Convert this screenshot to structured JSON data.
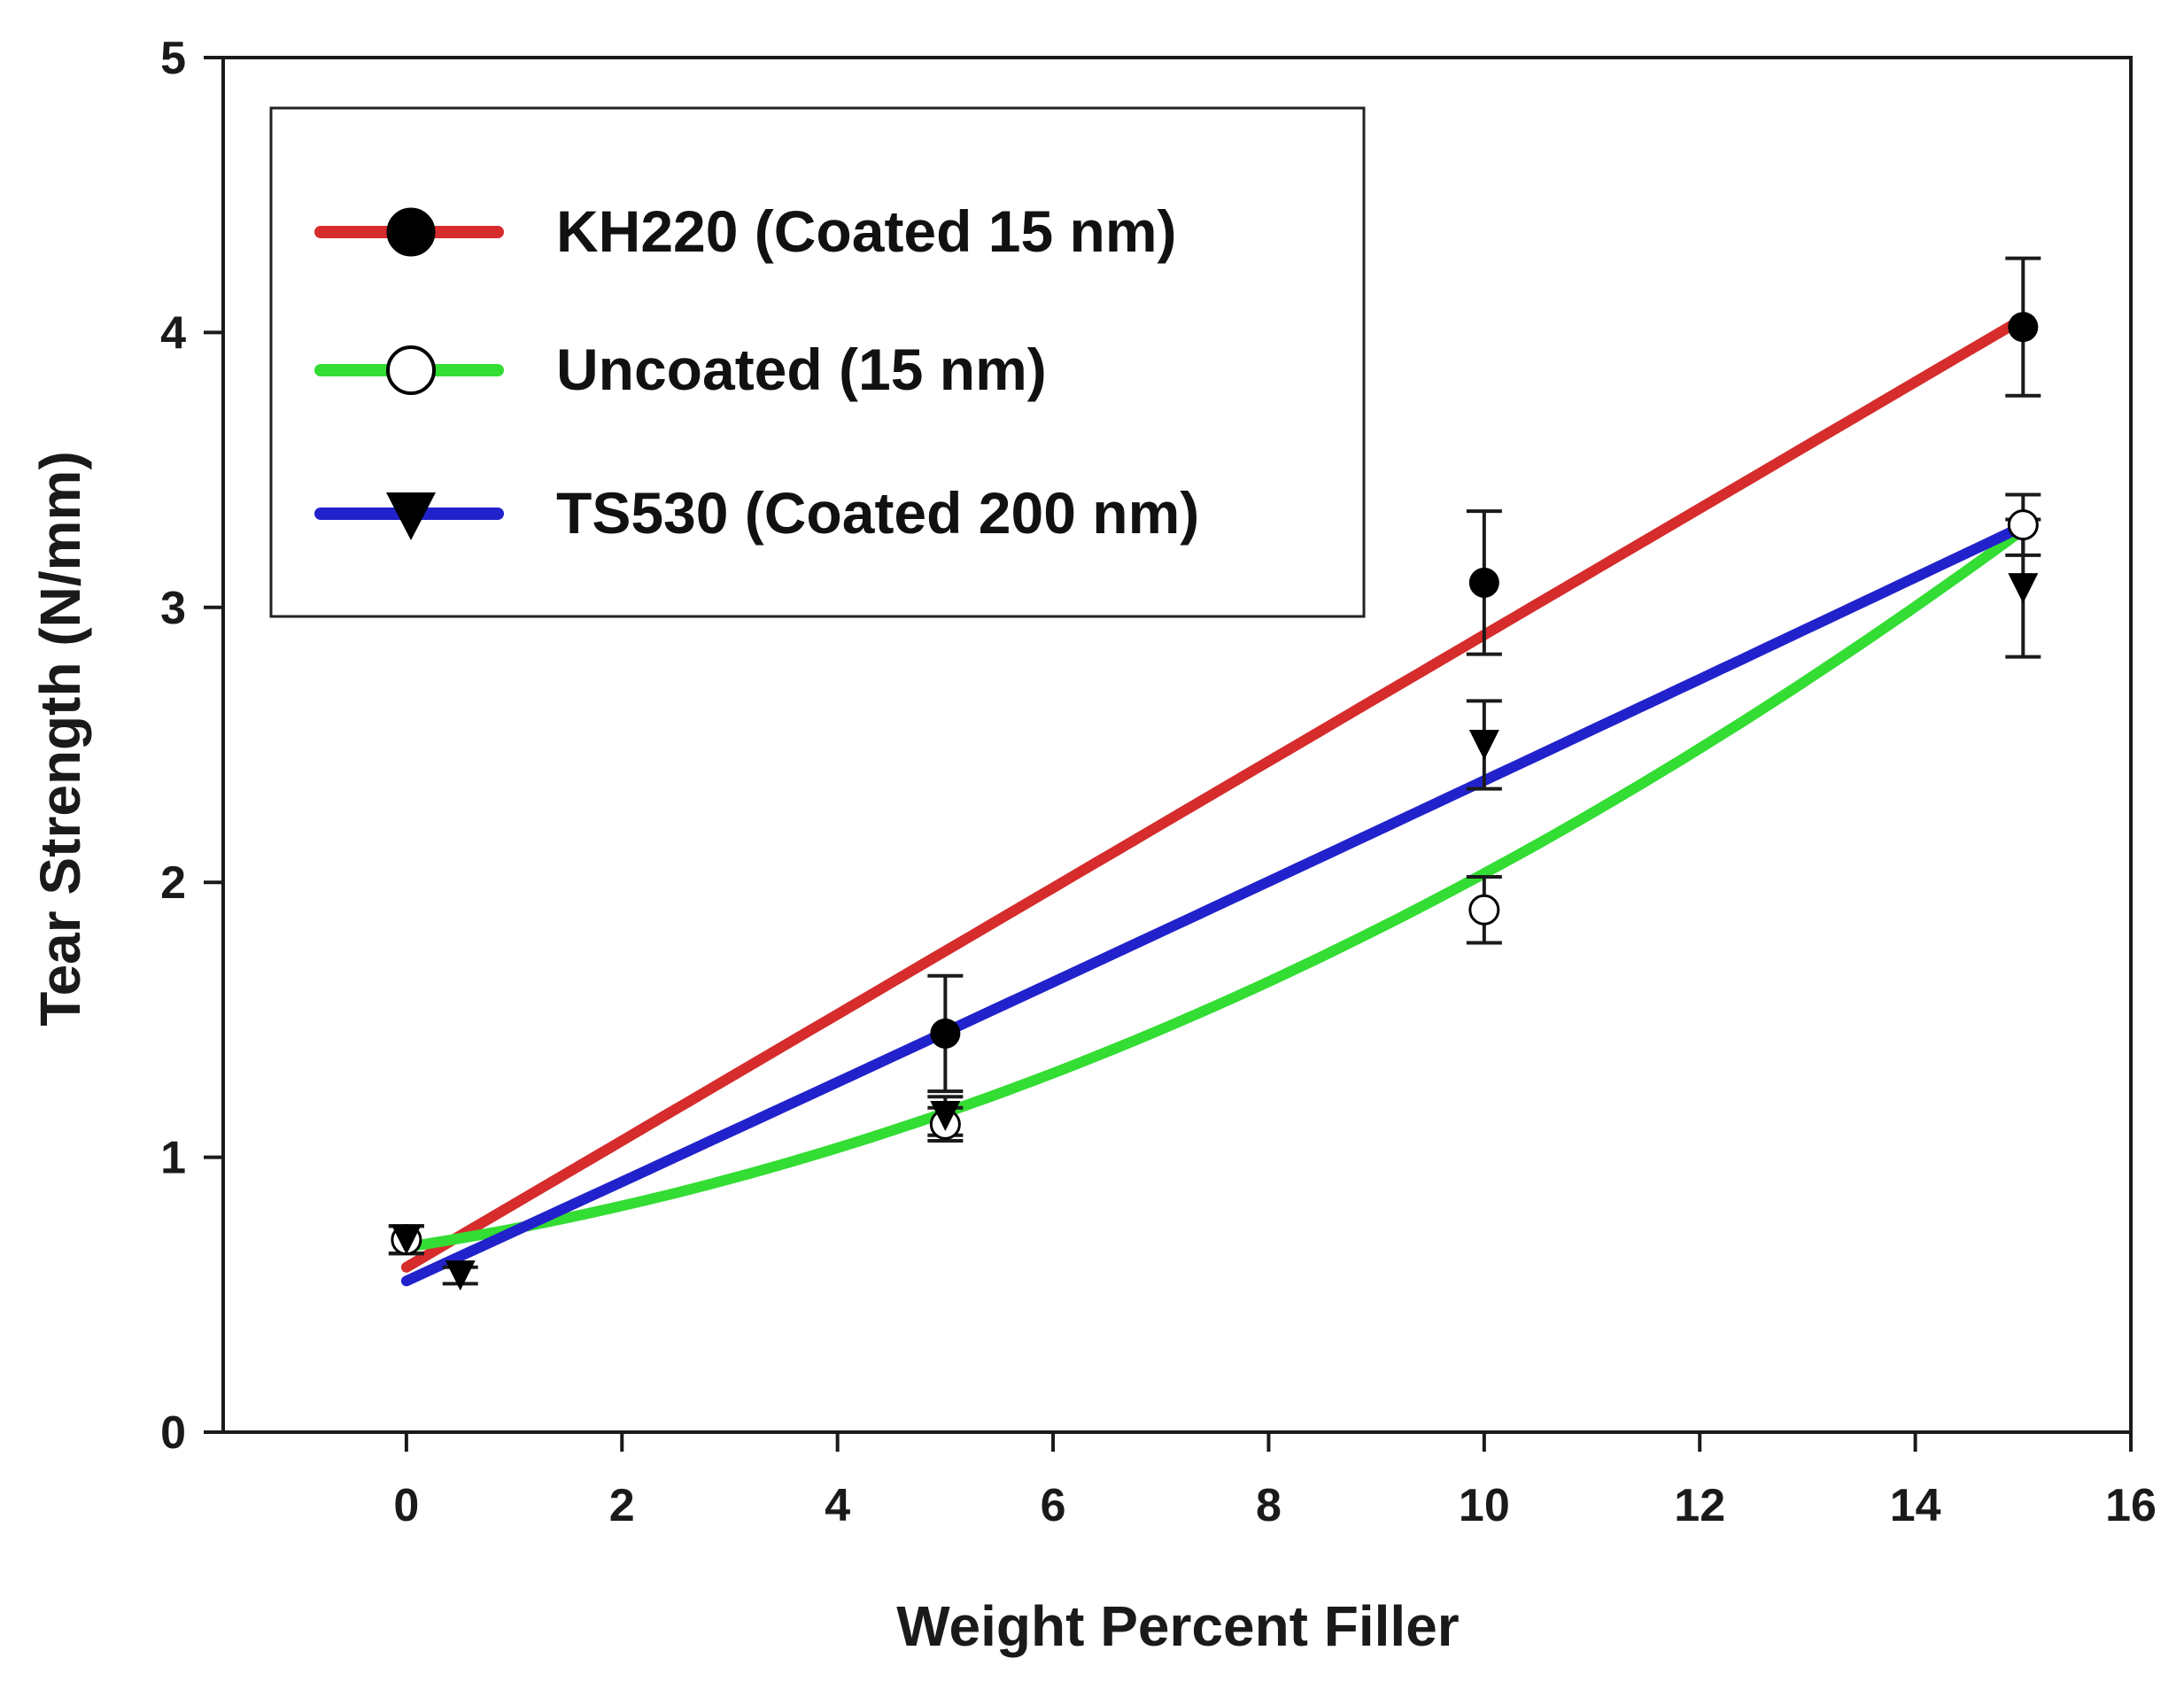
{
  "chart_data": {
    "type": "line",
    "title": "",
    "xlabel": "Weight Percent Filler",
    "ylabel": "Tear Strength (N/mm)",
    "xlim": [
      -1.7,
      16
    ],
    "ylim": [
      0,
      5
    ],
    "xticks": [
      0,
      2,
      4,
      6,
      8,
      10,
      12,
      14,
      16
    ],
    "yticks": [
      0,
      1,
      2,
      3,
      4,
      5
    ],
    "grid": false,
    "legend_position": "top-left",
    "series": [
      {
        "name": "KH220 (Coated 15 nm)",
        "color": "#d62c2c",
        "marker": "filled-circle",
        "points": [
          {
            "x": 0,
            "y": 0.7,
            "err": 0.05
          },
          {
            "x": 5,
            "y": 1.45,
            "err": 0.21
          },
          {
            "x": 10,
            "y": 3.09,
            "err": 0.26
          },
          {
            "x": 15,
            "y": 4.02,
            "err": 0.25
          }
        ],
        "fit": {
          "kind": "linear",
          "a": 0.6,
          "b": 0.23,
          "c": 0
        }
      },
      {
        "name": "Uncoated (15 nm)",
        "color": "#33dd33",
        "marker": "open-circle",
        "points": [
          {
            "x": 0,
            "y": 0.7,
            "err": 0.05
          },
          {
            "x": 5,
            "y": 1.12,
            "err": 0.06
          },
          {
            "x": 10,
            "y": 1.9,
            "err": 0.12
          },
          {
            "x": 15,
            "y": 3.3,
            "err": 0.11
          }
        ],
        "fit": {
          "kind": "quadratic",
          "a": 0.6733,
          "b": 0.0597,
          "c": 0.00762
        }
      },
      {
        "name": "TS530 (Coated 200 nm)",
        "color": "#2222cc",
        "marker": "filled-triangle-down",
        "points": [
          {
            "x": 0,
            "y": 0.7,
            "err": 0.05
          },
          {
            "x": 0.5,
            "y": 0.57,
            "err": 0.03
          },
          {
            "x": 5,
            "y": 1.15,
            "err": 0.07
          },
          {
            "x": 10,
            "y": 2.5,
            "err": 0.16
          },
          {
            "x": 15,
            "y": 3.07,
            "err": 0.25
          }
        ],
        "fit": {
          "kind": "quadratic",
          "a": 0.55,
          "b": 0.18,
          "c": 0.0002
        }
      }
    ]
  }
}
